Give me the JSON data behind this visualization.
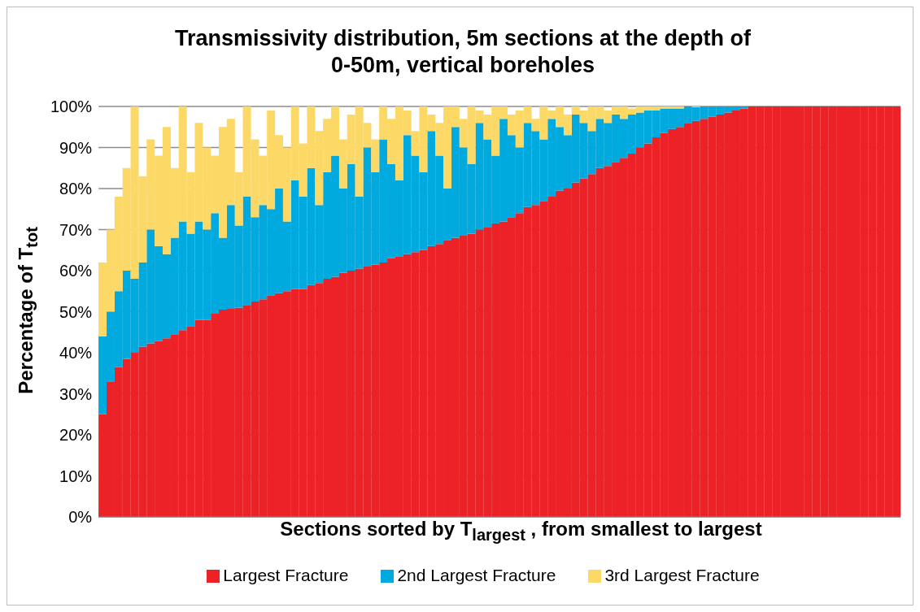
{
  "chart_data": {
    "type": "bar",
    "stacked": true,
    "title": "Transmissivity distribution, 5m sections at the depth of 0-50m, vertical boreholes",
    "xlabel": "Sections sorted by T$_{largest}$ , from smallest to largest",
    "ylabel": "Percentage of T$_{tot}$",
    "categories": [
      null,
      null,
      null,
      null,
      null,
      null,
      null,
      null,
      null,
      null,
      null,
      null,
      null,
      null,
      null,
      null,
      null,
      null,
      null,
      null,
      null,
      null,
      null,
      null,
      null,
      null,
      null,
      null,
      null,
      null,
      null,
      null,
      null,
      null,
      null,
      null,
      null,
      null,
      null,
      null,
      null,
      null,
      null,
      null,
      null,
      null,
      null,
      null,
      null,
      null,
      null,
      null,
      null,
      null,
      null,
      null,
      null,
      null,
      null,
      null,
      null,
      null,
      null,
      null,
      null,
      null,
      null,
      null,
      null,
      null,
      null,
      null,
      null,
      null,
      null,
      null,
      null,
      null,
      null,
      null,
      null,
      null,
      null,
      null,
      null,
      null,
      null,
      null,
      null,
      null,
      null,
      null,
      null,
      null,
      null,
      null,
      null,
      null,
      null,
      null
    ],
    "series": [
      {
        "name": "Largest Fracture",
        "color": "#ec2227",
        "values": [
          25,
          33,
          36.5,
          38.5,
          40,
          41.5,
          42.3,
          42.8,
          43.5,
          44.5,
          45.5,
          46.5,
          48,
          48,
          49.5,
          50.5,
          50.7,
          51,
          51.5,
          52.5,
          53,
          54,
          54.5,
          55,
          55.5,
          55.5,
          56.5,
          57,
          58,
          58.5,
          59.5,
          60,
          60.5,
          61,
          61.5,
          62,
          63,
          63.5,
          64,
          64.5,
          65,
          66,
          66.5,
          67.5,
          68,
          68.5,
          69,
          70,
          70.5,
          71.5,
          72,
          73,
          74,
          75.5,
          76,
          77,
          78,
          79.5,
          80,
          81.5,
          82.5,
          83.5,
          85,
          85.5,
          86.5,
          87.5,
          88.5,
          90,
          91,
          92.5,
          93.5,
          94.5,
          95,
          96,
          96.5,
          97,
          97.5,
          98,
          98.5,
          99,
          99.5,
          100,
          100,
          100,
          100,
          100,
          100,
          100,
          100,
          100,
          100,
          100,
          100,
          100,
          100,
          100,
          100,
          100,
          100,
          100
        ]
      },
      {
        "name": "2nd Largest Fracture",
        "color": "#00a9de",
        "values": [
          19,
          17,
          18.5,
          21.5,
          18,
          20.5,
          27.7,
          23.2,
          20.5,
          23.5,
          26.5,
          22.5,
          24,
          22,
          24.5,
          17.5,
          25.3,
          20,
          26.5,
          20.5,
          23,
          21,
          25.5,
          17,
          26.5,
          22.5,
          28.5,
          19,
          26,
          29.5,
          20.5,
          26,
          17.5,
          29,
          22.5,
          30,
          23,
          18.5,
          29,
          23.5,
          19,
          28,
          21.5,
          12.5,
          27,
          21.5,
          17,
          26,
          21.5,
          16.5,
          25,
          20,
          16,
          20.5,
          18,
          15,
          19,
          15.5,
          13,
          16.5,
          13.5,
          10.5,
          12,
          10.5,
          11.5,
          9.5,
          9.5,
          8.5,
          8,
          6.5,
          6,
          5,
          4.5,
          4,
          3.3,
          3,
          2.5,
          2,
          1.5,
          1,
          0.5,
          0,
          0,
          0,
          0,
          0,
          0,
          0,
          0,
          0,
          0,
          0,
          0,
          0,
          0,
          0,
          0,
          0,
          0,
          0
        ]
      },
      {
        "name": "3rd Largest Fracture",
        "color": "#fcd966",
        "values": [
          18,
          20,
          23,
          25,
          42,
          21,
          22,
          22,
          31,
          17,
          28,
          15,
          24,
          20,
          14,
          27,
          21,
          13,
          22,
          19,
          12,
          24,
          13,
          18,
          18,
          13,
          15,
          18,
          13,
          12,
          12,
          12,
          22,
          6,
          8,
          8,
          11,
          18,
          6,
          6,
          16,
          4,
          8,
          20,
          5,
          7,
          14,
          3,
          6,
          12,
          3,
          5,
          9,
          4,
          3,
          8,
          2,
          5,
          5,
          2,
          3,
          6,
          3,
          3,
          2,
          3,
          1.5,
          1.5,
          1,
          1,
          0.5,
          0.5,
          0.5,
          0,
          0.2,
          0,
          0,
          0,
          0,
          0,
          0,
          0,
          0,
          0,
          0,
          0,
          0,
          0,
          0,
          0,
          0,
          0,
          0,
          0,
          0,
          0,
          0,
          0,
          0,
          0
        ]
      }
    ],
    "ylim": [
      0,
      100
    ],
    "yticks": [
      {
        "value": 0,
        "label": "0%"
      },
      {
        "value": 10,
        "label": "10%"
      },
      {
        "value": 20,
        "label": "20%"
      },
      {
        "value": 30,
        "label": "30%"
      },
      {
        "value": 40,
        "label": "40%"
      },
      {
        "value": 50,
        "label": "50%"
      },
      {
        "value": 60,
        "label": "60%"
      },
      {
        "value": 70,
        "label": "70%"
      },
      {
        "value": 80,
        "label": "80%"
      },
      {
        "value": 90,
        "label": "90%"
      },
      {
        "value": 100,
        "label": "100%"
      }
    ],
    "grid": "y",
    "legend": "bottom"
  }
}
